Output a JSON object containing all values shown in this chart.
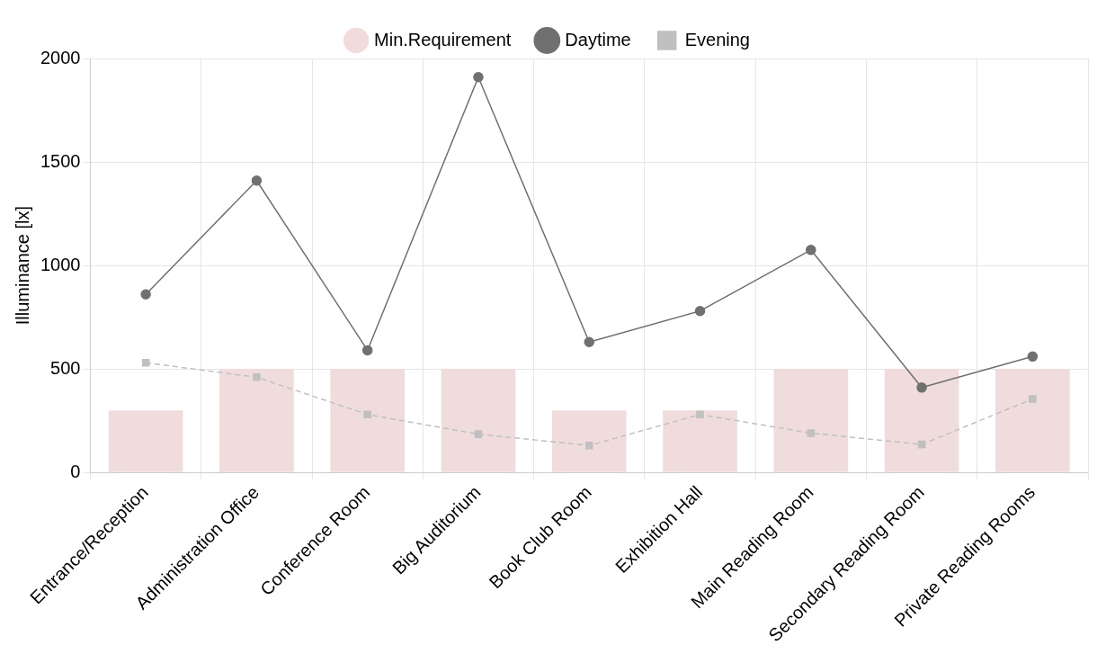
{
  "chart_data": {
    "type": "bar",
    "ylabel": "Illuminance [lx]",
    "categories": [
      "Entrance/Reception",
      "Administration Office",
      "Conference Room",
      "Big Auditorium",
      "Book Club Room",
      "Exhibition Hall",
      "Main Reading Room",
      "Secondary Reading Room",
      "Private Reading Rooms"
    ],
    "series": [
      {
        "name": "Min.Requirement",
        "color": "#f0dcdc",
        "values": [
          300,
          500,
          500,
          500,
          300,
          300,
          500,
          500,
          500
        ]
      },
      {
        "name": "Daytime",
        "type": "line",
        "color": "#707070",
        "marker": "circle",
        "line_style": "solid",
        "values": [
          860,
          1410,
          590,
          1910,
          630,
          780,
          1075,
          410,
          560
        ]
      },
      {
        "name": "Evening",
        "type": "line",
        "color": "#c0c0c0",
        "marker": "square",
        "line_style": "dashed",
        "values": [
          530,
          460,
          280,
          185,
          130,
          280,
          190,
          135,
          355
        ]
      }
    ],
    "ylim": [
      0,
      2000
    ],
    "yticks": [
      0,
      500,
      1000,
      1500,
      2000
    ],
    "grid": true,
    "legend": "top"
  }
}
